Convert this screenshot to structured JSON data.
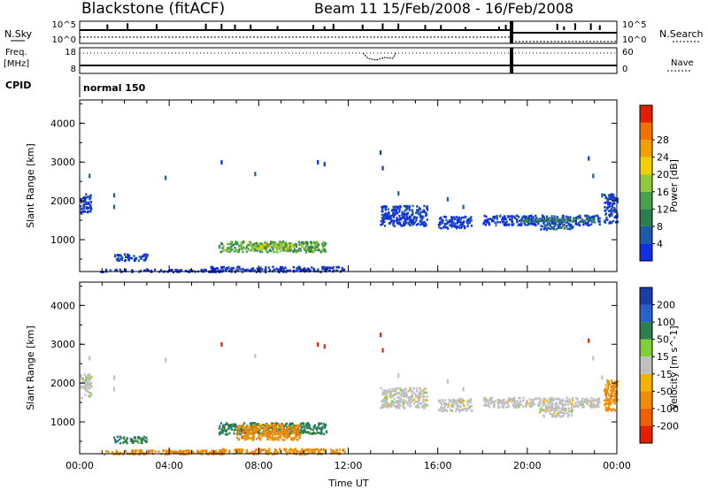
{
  "header": {
    "title_left": "Blackstone (fitACF)",
    "title_right": "Beam 11  15/Feb/2008 - 16/Feb/2008"
  },
  "status_panel": {
    "nsky_label": "N.Sky",
    "nsearch_label": "N.Search",
    "nsky_ticks": [
      "10^5",
      "10^0"
    ],
    "freq_label": "Freq.",
    "freq_unit": "[MHz]",
    "freq_ticks": [
      "18",
      "8"
    ],
    "nave_label": "Nave",
    "nave_ticks": [
      "60",
      "0"
    ],
    "cpid_label": "CPID",
    "cpid_value": "normal 150"
  },
  "colors": {
    "scale_power": [
      "#1030e0",
      "#1e5aa8",
      "#2e7d4f",
      "#4aa04a",
      "#8fc83a",
      "#f0d000",
      "#f0a000",
      "#f07000",
      "#e02000"
    ],
    "scale_velocity": [
      "#1c3ca8",
      "#2a60c8",
      "#2e7d4f",
      "#7fcf3a",
      "#c0c0c0",
      "#f5b300",
      "#f08a00",
      "#f06000",
      "#e02000"
    ],
    "ground": "#c8c8c8"
  },
  "chart_data": [
    {
      "type": "heatmap",
      "name": "power",
      "ylabel": "Slant Range [km]",
      "xlabel": "",
      "ylim": [
        180,
        4600
      ],
      "yticks": [
        "1000",
        "2000",
        "3000",
        "4000"
      ],
      "xlim_hours": [
        0,
        24
      ],
      "xticks": [],
      "colorbar": {
        "label": "Power [dB]",
        "range": [
          0,
          32
        ],
        "ticks": [
          "4",
          "8",
          "12",
          "16",
          "20",
          "24",
          "28"
        ]
      },
      "regions": [
        {
          "t": [
            0.0,
            0.5
          ],
          "r": [
            1700,
            2200
          ],
          "level": 4
        },
        {
          "t": [
            1.5,
            3.0
          ],
          "r": [
            480,
            650
          ],
          "level": 3
        },
        {
          "t": [
            0.9,
            6.5
          ],
          "r": [
            190,
            260
          ],
          "level": 3
        },
        {
          "t": [
            5.8,
            11.8
          ],
          "r": [
            190,
            330
          ],
          "level": 6
        },
        {
          "t": [
            6.2,
            11.0
          ],
          "r": [
            700,
            980
          ],
          "level": 17
        },
        {
          "t": [
            7.8,
            9.5
          ],
          "r": [
            780,
            920
          ],
          "level": 20
        },
        {
          "t": [
            13.4,
            15.5
          ],
          "r": [
            1380,
            1900
          ],
          "level": 4
        },
        {
          "t": [
            16.0,
            17.5
          ],
          "r": [
            1300,
            1620
          ],
          "level": 4
        },
        {
          "t": [
            18.0,
            23.2
          ],
          "r": [
            1400,
            1650
          ],
          "level": 5
        },
        {
          "t": [
            19.5,
            23.0
          ],
          "r": [
            1480,
            1580
          ],
          "level": 15
        },
        {
          "t": [
            20.5,
            22.0
          ],
          "r": [
            1280,
            1420
          ],
          "level": 10
        },
        {
          "t": [
            23.4,
            24.0
          ],
          "r": [
            1450,
            2200
          ],
          "level": 4
        }
      ]
    },
    {
      "type": "heatmap",
      "name": "velocity",
      "ylabel": "Slant Range [km]",
      "xlabel": "Time UT",
      "ylim": [
        180,
        4600
      ],
      "yticks": [
        "1000",
        "2000",
        "3000",
        "4000"
      ],
      "xlim_hours": [
        0,
        24
      ],
      "xticks": [
        "00:00",
        "04:00",
        "08:00",
        "12:00",
        "16:00",
        "20:00",
        "00:00"
      ],
      "colorbar": {
        "label": "Velocity [m s^-1]",
        "ticks": [
          "200",
          "100",
          "50",
          "15",
          "-15",
          "-50",
          "-100",
          "-200"
        ]
      },
      "regions": [
        {
          "t": [
            0.0,
            0.5
          ],
          "r": [
            1650,
            2250
          ],
          "class": "ground"
        },
        {
          "t": [
            0.9,
            6.5
          ],
          "r": [
            190,
            300
          ],
          "class": "-50"
        },
        {
          "t": [
            1.5,
            3.0
          ],
          "r": [
            480,
            650
          ],
          "class": "50"
        },
        {
          "t": [
            5.8,
            11.8
          ],
          "r": [
            190,
            330
          ],
          "class": "-50"
        },
        {
          "t": [
            6.2,
            11.0
          ],
          "r": [
            700,
            1000
          ],
          "class": "50"
        },
        {
          "t": [
            7.0,
            9.8
          ],
          "r": [
            560,
            960
          ],
          "class": "-50"
        },
        {
          "t": [
            13.4,
            15.5
          ],
          "r": [
            1380,
            1900
          ],
          "class": "ground"
        },
        {
          "t": [
            16.0,
            17.5
          ],
          "r": [
            1300,
            1620
          ],
          "class": "ground"
        },
        {
          "t": [
            18.0,
            23.2
          ],
          "r": [
            1400,
            1650
          ],
          "class": "ground"
        },
        {
          "t": [
            20.5,
            22.0
          ],
          "r": [
            1150,
            1400
          ],
          "class": "ground"
        },
        {
          "t": [
            23.4,
            24.0
          ],
          "r": [
            1300,
            2100
          ],
          "class": "-50"
        }
      ]
    }
  ]
}
